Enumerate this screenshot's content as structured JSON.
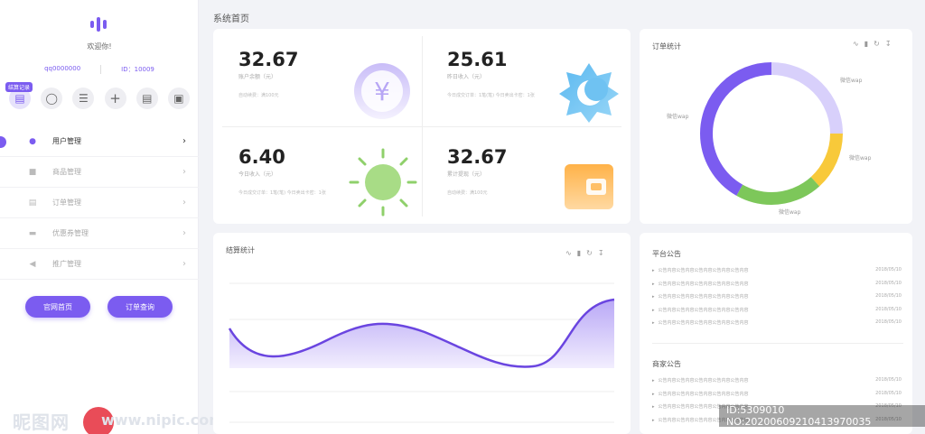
{
  "sidebar": {
    "welcome": "欢迎你!",
    "account": "qq0000000",
    "id_text": "ID：10009",
    "quick_tag": "结算记录",
    "quick_icons": [
      "clipboard-icon",
      "shield-icon",
      "list-icon",
      "plus-icon",
      "document-icon",
      "save-icon"
    ],
    "nav": [
      {
        "label": "用户管理",
        "icon": "user-icon"
      },
      {
        "label": "商品管理",
        "icon": "basket-icon"
      },
      {
        "label": "订单管理",
        "icon": "clipboard-icon"
      },
      {
        "label": "优惠券管理",
        "icon": "ticket-icon"
      },
      {
        "label": "推广管理",
        "icon": "megaphone-icon"
      }
    ],
    "btn_home": "官网首页",
    "btn_query": "订单查询"
  },
  "page_title": "系统首页",
  "stats": [
    {
      "value": "32.67",
      "label": "账户余额（元）",
      "sub": "自动续费：满100元"
    },
    {
      "value": "25.61",
      "label": "昨日收入（元）",
      "sub": "今日成交订单：1笔(笔)  今日卖出卡密：1张"
    },
    {
      "value": "6.40",
      "label": "今日收入（元）",
      "sub": "今日成交订单：1笔(笔)  今日卖出卡密：1张"
    },
    {
      "value": "32.67",
      "label": "累计提现（元）",
      "sub": "自动续费：满100元"
    }
  ],
  "order": {
    "title": "订单统计",
    "labels": [
      "微信wap",
      "微信wap",
      "微信wap",
      "微信wap"
    ],
    "colors": {
      "purple": "#7b5cf0",
      "lavender": "#d8d0fb",
      "yellow": "#f8c93a",
      "green": "#7dc75a"
    }
  },
  "settle": {
    "title": "结算统计"
  },
  "platform_notice": {
    "title": "平台公告",
    "items": [
      {
        "text": "公告内容公告内容公告内容公告内容公告内容",
        "date": "2018/05/10"
      },
      {
        "text": "公告内容公告内容公告内容公告内容公告内容",
        "date": "2018/05/10"
      },
      {
        "text": "公告内容公告内容公告内容公告内容公告内容",
        "date": "2018/05/10"
      },
      {
        "text": "公告内容公告内容公告内容公告内容公告内容",
        "date": "2018/05/10"
      },
      {
        "text": "公告内容公告内容公告内容公告内容公告内容",
        "date": "2018/05/10"
      }
    ]
  },
  "merchant_notice": {
    "title": "商家公告",
    "items": [
      {
        "text": "公告内容公告内容公告内容公告内容公告内容",
        "date": "2018/05/10"
      },
      {
        "text": "公告内容公告内容公告内容公告内容公告内容",
        "date": "2018/05/10"
      },
      {
        "text": "公告内容公告内容公告内容公告内容公告内容",
        "date": "2018/05/10"
      },
      {
        "text": "公告内容公告内容公告内容公告内容公告内容",
        "date": "2018/05/10"
      }
    ]
  },
  "watermark": {
    "logo": "昵图网",
    "url": "www.nipic.com",
    "id": "ID:5309010 NO:20200609210413970035"
  }
}
